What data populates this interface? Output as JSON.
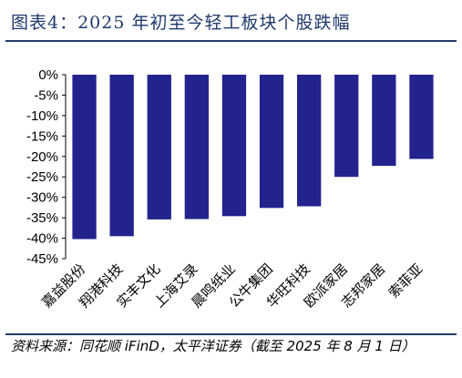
{
  "header": {
    "title": "图表4：2025 年初至今轻工板块个股跌幅"
  },
  "footer": {
    "source": "资料来源：同花顺 iFinD，太平洋证券（截至 2025 年 8 月 1 日）"
  },
  "chart_data": {
    "type": "bar",
    "categories": [
      "嘉益股份",
      "翔港科技",
      "实丰文化",
      "上海艾录",
      "晨鸣纸业",
      "公牛集团",
      "华旺科技",
      "欧派家居",
      "志邦家居",
      "索菲亚"
    ],
    "values": [
      -40.2,
      -39.5,
      -35.4,
      -35.3,
      -34.6,
      -32.6,
      -32.2,
      -25.0,
      -22.3,
      -20.6
    ],
    "yticks": [
      "0%",
      "-5%",
      "-10%",
      "-15%",
      "-20%",
      "-25%",
      "-30%",
      "-35%",
      "-40%",
      "-45%"
    ],
    "ylim": [
      -45,
      0
    ],
    "bar_color": "#23238e",
    "xlabel": "",
    "ylabel": ""
  }
}
